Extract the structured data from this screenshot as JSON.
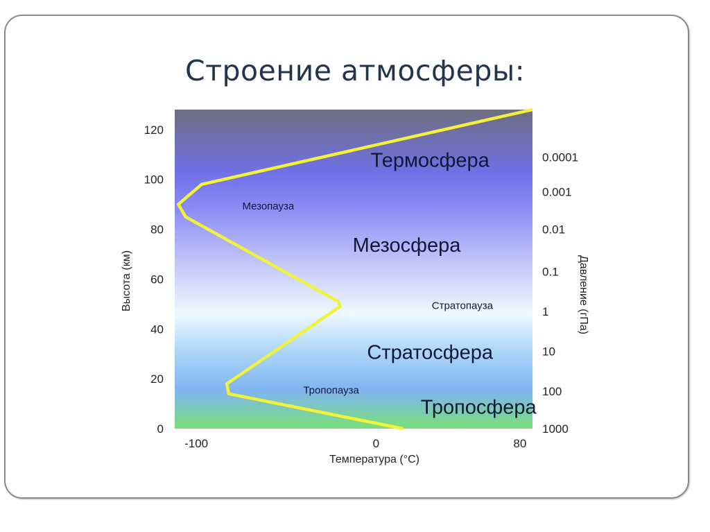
{
  "title": "Строение атмосферы:",
  "chart_data": {
    "type": "line",
    "xlabel": "Температура (°C)",
    "ylabel": "Высота (км)",
    "y2label": "Давление (гПа)",
    "xlim": [
      -112,
      87
    ],
    "ylim": [
      0,
      128
    ],
    "x_ticks": [
      -100,
      0,
      80
    ],
    "y_ticks": [
      0,
      20,
      40,
      60,
      80,
      100,
      120
    ],
    "y2_ticks": [
      {
        "label": "0.0001",
        "altitude": 109
      },
      {
        "label": "0.001",
        "altitude": 95
      },
      {
        "label": "0.01",
        "altitude": 80
      },
      {
        "label": "0.1",
        "altitude": 63
      },
      {
        "label": "1",
        "altitude": 47
      },
      {
        "label": "10",
        "altitude": 31
      },
      {
        "label": "100",
        "altitude": 15
      },
      {
        "label": "1000",
        "altitude": 0
      }
    ],
    "series": [
      {
        "color": "#f2f23a",
        "points": [
          [
            15,
            0
          ],
          [
            -82,
            14
          ],
          [
            -83,
            18
          ],
          [
            -20,
            49
          ],
          [
            -21,
            51
          ],
          [
            -106,
            85
          ],
          [
            -110,
            90
          ],
          [
            -97,
            98
          ],
          [
            87,
            128
          ]
        ]
      }
    ],
    "annotations": [
      {
        "text": "Термосфера",
        "x": 30,
        "altitude": 105,
        "size": "large"
      },
      {
        "text": "Мезопауза",
        "x": -60,
        "altitude": 88,
        "size": "small"
      },
      {
        "text": "Мезосфера",
        "x": 17,
        "altitude": 71,
        "size": "large"
      },
      {
        "text": "Стратопауза",
        "x": 48,
        "altitude": 48,
        "size": "small"
      },
      {
        "text": "Стратосфера",
        "x": 30,
        "altitude": 28,
        "size": "large"
      },
      {
        "text": "Тропопауза",
        "x": -25,
        "altitude": 14,
        "size": "small"
      },
      {
        "text": "Тропосфера",
        "x": 57,
        "altitude": 6,
        "size": "large"
      }
    ],
    "background_gradient": [
      "#6e6e80",
      "#7070e8",
      "#8888f4",
      "#c8cdf8",
      "#eef9ff",
      "#b0d8f8",
      "#80b4f0",
      "#78e078"
    ],
    "grid": false
  }
}
